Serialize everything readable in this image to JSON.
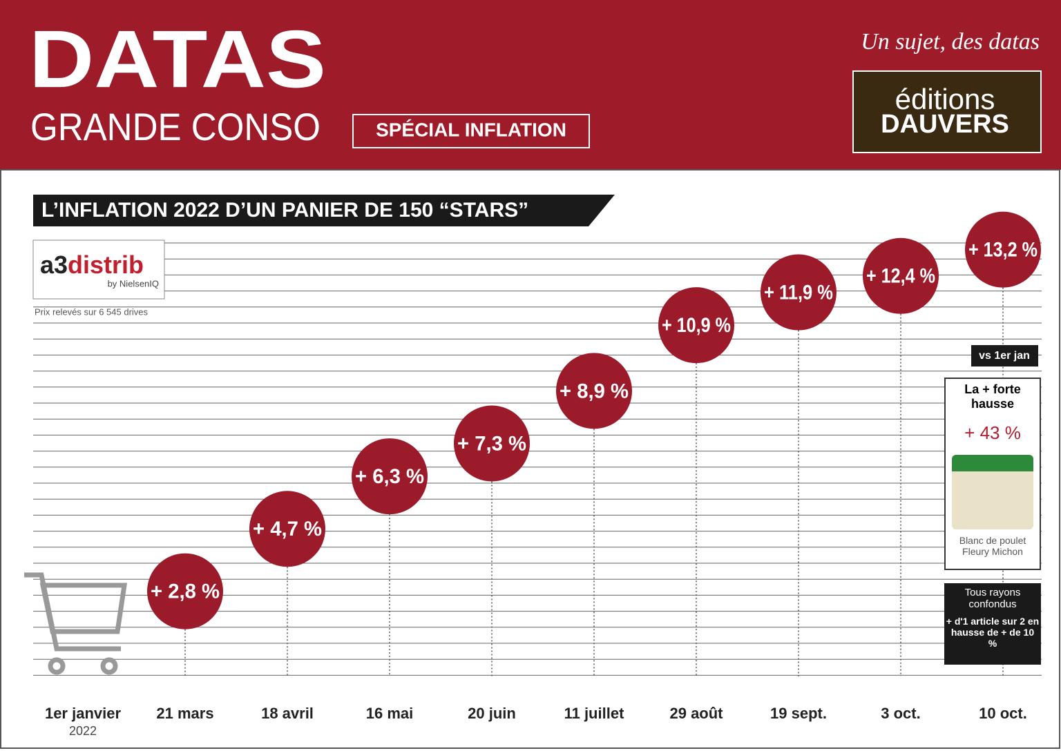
{
  "header": {
    "brand": "DATAS",
    "brand_sub": "GRANDE CONSO",
    "badge": "SPÉCIAL INFLATION",
    "tagline": "Un sujet, des datas",
    "publisher_top": "éditions",
    "publisher_bottom": "DAUVERS"
  },
  "source": {
    "logo_main": "a3",
    "logo_accent": "distrib",
    "logo_sub": "by NielsenIQ",
    "note": "Prix relevés sur 6 545 drives"
  },
  "sidebar": {
    "vs_label": "vs 1er jan",
    "highlight_title": "La + forte hausse",
    "highlight_value": "+ 43 %",
    "product": "Blanc de poulet Fleury Michon",
    "summary_title": "Tous rayons confondus",
    "summary_text": "+ d'1 article sur 2 en hausse de + de 10 %"
  },
  "chart_data": {
    "type": "bubble",
    "title": "L’INFLATION 2022 D’UN PANIER DE 150 “STARS”",
    "categories": [
      "1er janvier",
      "21 mars",
      "18 avril",
      "16 mai",
      "20 juin",
      "11 juillet",
      "29 août",
      "19 sept.",
      "3 oct.",
      "10 oct."
    ],
    "x_sublabel": "2022",
    "values": [
      null,
      2.8,
      4.7,
      6.3,
      7.3,
      8.9,
      10.9,
      11.9,
      12.4,
      13.2
    ],
    "value_labels": [
      null,
      "+ 2,8 %",
      "+ 4,7 %",
      "+ 6,3 %",
      "+ 7,3 %",
      "+ 8,9 %",
      "+ 10,9 %",
      "+ 11,9 %",
      "+ 12,4 %",
      "+ 13,2 %"
    ],
    "color": "#9b1b2b",
    "ylim": [
      0,
      15
    ]
  }
}
